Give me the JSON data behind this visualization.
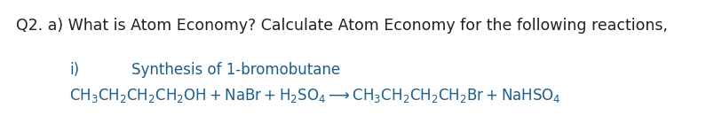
{
  "background_color": "#ffffff",
  "title_text": "Q2. a) What is Atom Economy? Calculate Atom Economy for the following reactions,",
  "title_color": "#231f20",
  "title_fontsize": 12.5,
  "title_fontweight": "normal",
  "blue_color": "#1a5f8a",
  "label_i_text": "i)",
  "label_i_fontsize": 12.0,
  "synthesis_text": "Synthesis of 1-bromobutane",
  "synthesis_fontsize": 12.0,
  "reaction_fontsize": 12.0,
  "figsize": [
    8.13,
    1.48
  ],
  "dpi": 100
}
